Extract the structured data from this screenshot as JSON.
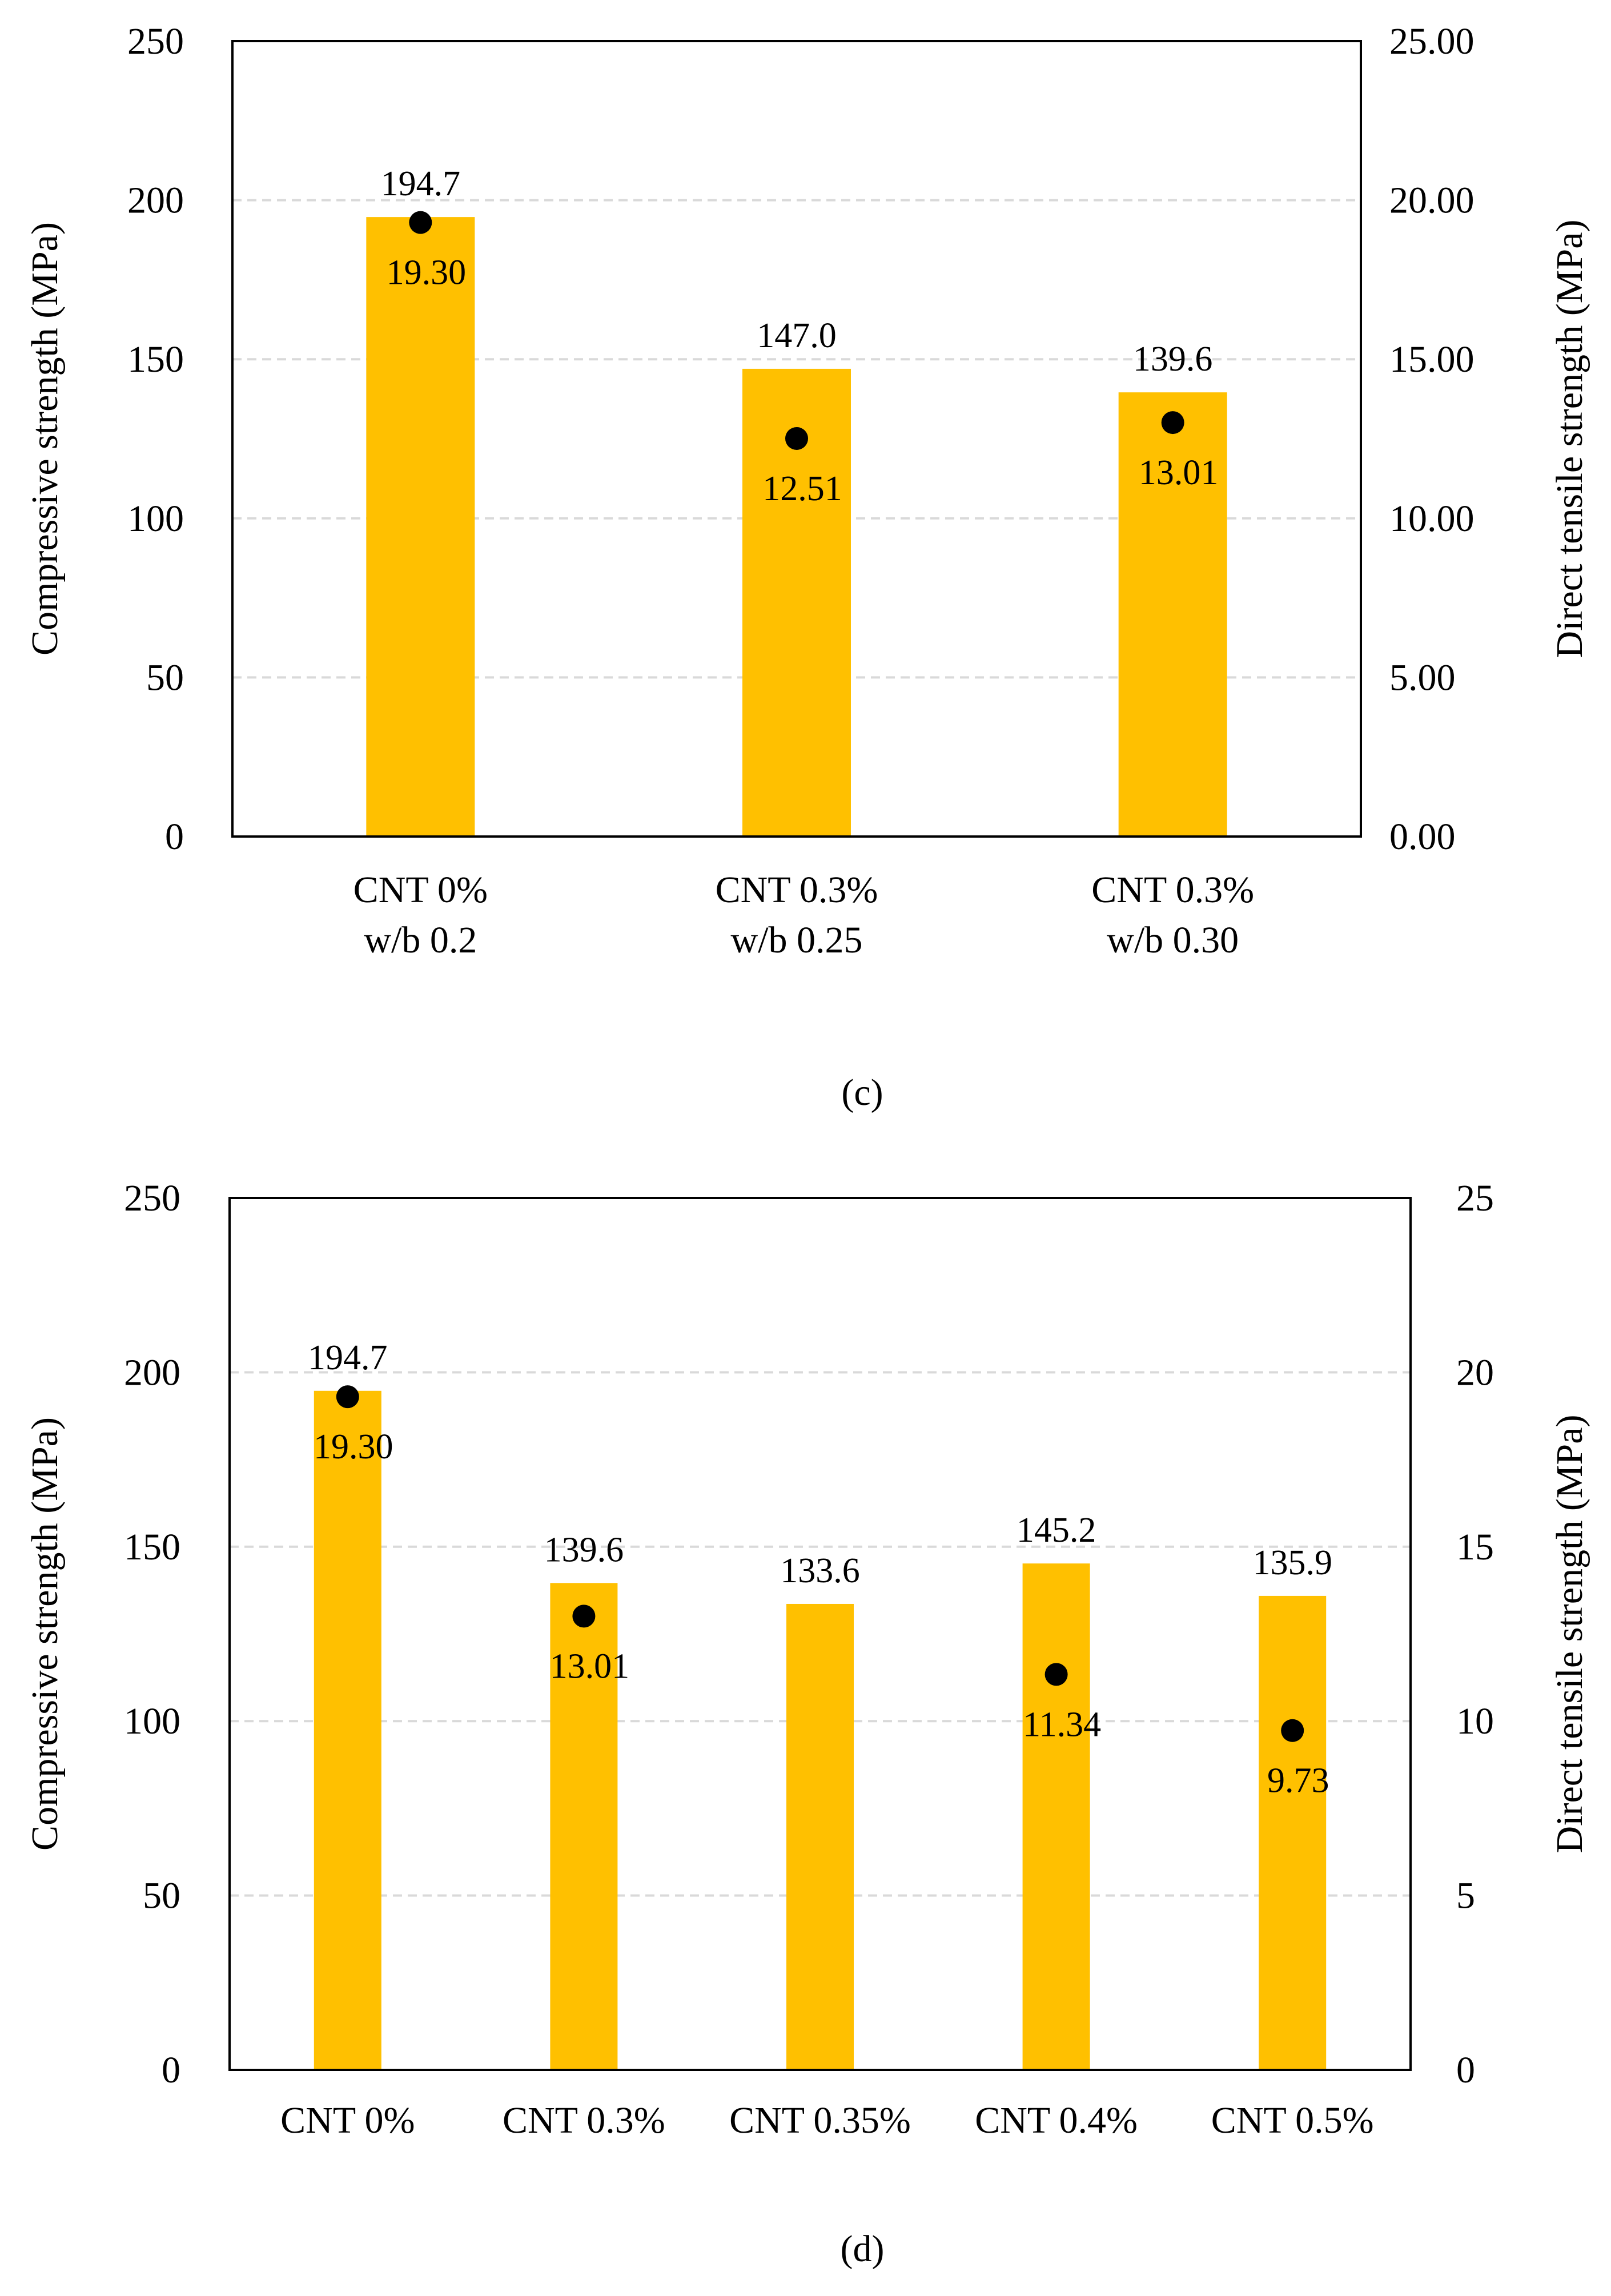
{
  "colors": {
    "bar": "#FFC000",
    "marker": "#000000",
    "grid": "#D9D9D9",
    "axis": "#000000"
  },
  "chart_data": [
    {
      "id": "c",
      "type": "bar",
      "caption": "(c)",
      "categories": [
        [
          "CNT 0%",
          "w/b 0.2"
        ],
        [
          "CNT 0.3%",
          "w/b 0.25"
        ],
        [
          "CNT 0.3%",
          "w/b 0.30"
        ]
      ],
      "ylabel": "Compressive strength (MPa)",
      "y2label": "Direct tensile strength (MPa)",
      "ylim": [
        0,
        250
      ],
      "y2lim": [
        0,
        25
      ],
      "yticks": [
        "0",
        "50",
        "100",
        "150",
        "200",
        "250"
      ],
      "y2ticks": [
        "0.00",
        "5.00",
        "10.00",
        "15.00",
        "20.00",
        "25.00"
      ],
      "grid": true,
      "series": [
        {
          "kind": "bar",
          "axis": "left",
          "values": [
            194.7,
            147.0,
            139.6
          ],
          "labels": [
            "194.7",
            "147.0",
            "139.6"
          ]
        },
        {
          "kind": "scatter",
          "axis": "right",
          "values": [
            19.3,
            12.51,
            13.01
          ],
          "labels": [
            "19.30",
            "12.51",
            "13.01"
          ]
        }
      ]
    },
    {
      "id": "d",
      "type": "bar",
      "caption": "(d)",
      "categories": [
        [
          "CNT 0%"
        ],
        [
          "CNT 0.3%"
        ],
        [
          "CNT 0.35%"
        ],
        [
          "CNT 0.4%"
        ],
        [
          "CNT 0.5%"
        ]
      ],
      "ylabel": "Compressive strength (MPa)",
      "y2label": "Direct tensile strength (MPa)",
      "ylim": [
        0,
        250
      ],
      "y2lim": [
        0,
        25
      ],
      "yticks": [
        "0",
        "50",
        "100",
        "150",
        "200",
        "250"
      ],
      "y2ticks": [
        "0",
        "5",
        "10",
        "15",
        "20",
        "25"
      ],
      "grid": true,
      "series": [
        {
          "kind": "bar",
          "axis": "left",
          "values": [
            194.7,
            139.6,
            133.6,
            145.2,
            135.9
          ],
          "labels": [
            "194.7",
            "139.6",
            "133.6",
            "145.2",
            "135.9"
          ]
        },
        {
          "kind": "scatter",
          "axis": "right",
          "values": [
            19.3,
            13.01,
            null,
            11.34,
            9.73
          ],
          "labels": [
            "19.30",
            "13.01",
            null,
            "11.34",
            "9.73"
          ]
        }
      ]
    }
  ]
}
